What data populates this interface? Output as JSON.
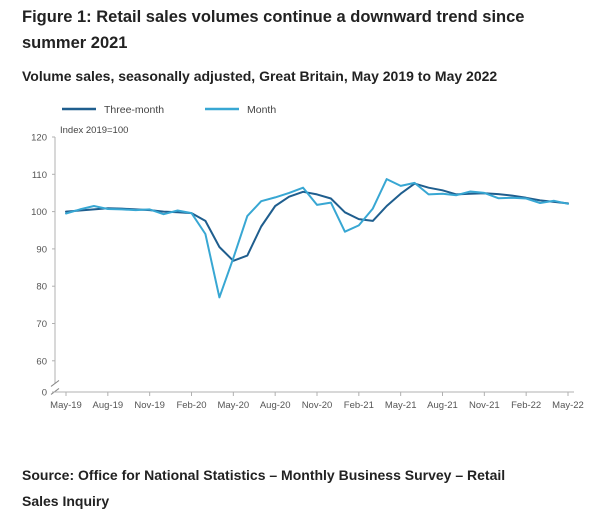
{
  "figure": {
    "title": "Figure 1: Retail sales volumes continue a downward trend since summer 2021",
    "subtitle": "Volume sales, seasonally adjusted, Great Britain, May 2019 to May 2022",
    "source": "Source: Office for National Statistics – Monthly Business Survey – Retail Sales Inquiry"
  },
  "chart_data": {
    "type": "line",
    "ylabel": "Index 2019=100",
    "xlabel": "",
    "yticks": [
      "0",
      "60",
      "70",
      "80",
      "90",
      "100",
      "110",
      "120"
    ],
    "y_axis_break": true,
    "ylim": [
      55,
      120
    ],
    "grid": false,
    "legend_position": "top-left",
    "x": [
      "May-19",
      "Jun-19",
      "Jul-19",
      "Aug-19",
      "Sep-19",
      "Oct-19",
      "Nov-19",
      "Dec-19",
      "Jan-20",
      "Feb-20",
      "Mar-20",
      "Apr-20",
      "May-20",
      "Jun-20",
      "Jul-20",
      "Aug-20",
      "Sep-20",
      "Oct-20",
      "Nov-20",
      "Dec-20",
      "Jan-21",
      "Feb-21",
      "Mar-21",
      "Apr-21",
      "May-21",
      "Jun-21",
      "Jul-21",
      "Aug-21",
      "Sep-21",
      "Oct-21",
      "Nov-21",
      "Dec-21",
      "Jan-22",
      "Feb-22",
      "Mar-22",
      "Apr-22",
      "May-22"
    ],
    "xtick_labels": [
      "May-19",
      "Aug-19",
      "Nov-19",
      "Feb-20",
      "May-20",
      "Aug-20",
      "Nov-20",
      "Feb-21",
      "May-21",
      "Aug-21",
      "Nov-21",
      "Feb-22",
      "May-22"
    ],
    "series": [
      {
        "name": "Three-month",
        "color": "#1f5e8e",
        "values": [
          100.0,
          100.3,
          100.6,
          100.9,
          100.8,
          100.6,
          100.4,
          100.0,
          99.8,
          99.6,
          97.5,
          90.5,
          86.8,
          88.2,
          96.0,
          101.5,
          104.0,
          105.3,
          104.6,
          103.5,
          99.8,
          98.0,
          97.5,
          101.5,
          104.8,
          107.5,
          106.4,
          105.7,
          104.6,
          104.8,
          104.9,
          104.7,
          104.3,
          103.7,
          103.0,
          102.6,
          102.2
        ]
      },
      {
        "name": "Month",
        "color": "#38a7d3",
        "values": [
          99.5,
          100.6,
          101.5,
          100.7,
          100.6,
          100.4,
          100.6,
          99.3,
          100.3,
          99.6,
          94.0,
          77.0,
          87.5,
          98.8,
          102.8,
          103.8,
          105.0,
          106.4,
          101.8,
          102.4,
          94.6,
          96.3,
          100.8,
          108.7,
          106.9,
          107.7,
          104.6,
          104.8,
          104.4,
          105.4,
          105.0,
          103.6,
          103.7,
          103.5,
          102.3,
          102.9,
          102.1
        ]
      }
    ]
  }
}
